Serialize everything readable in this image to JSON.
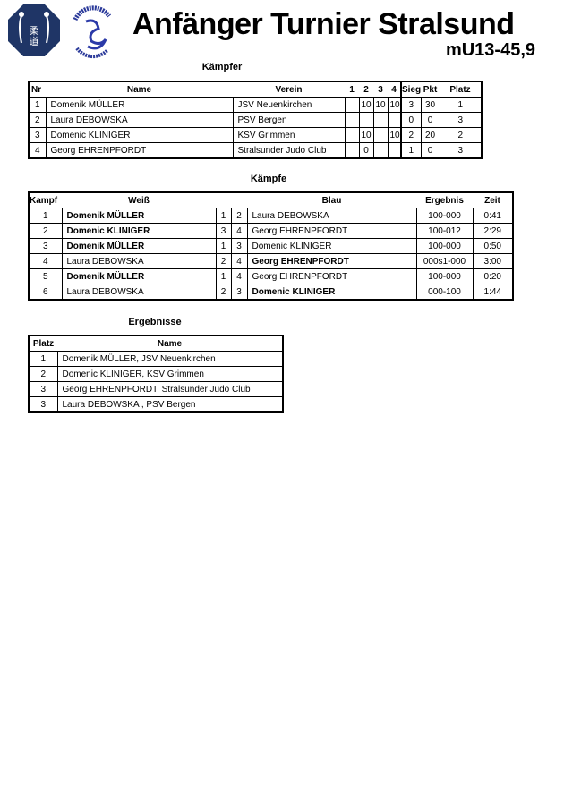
{
  "header": {
    "title": "Anfänger Turnier Stralsund",
    "category": "mU13-45,9",
    "logo_right_text": "STRALSUNDER JUDO CLUB e.V."
  },
  "kaempfer": {
    "title": "Kämpfer",
    "columns": [
      "Nr",
      "Name",
      "Verein",
      "1",
      "2",
      "3",
      "4",
      "Siege",
      "Pkt",
      "Platz"
    ],
    "rows": [
      {
        "nr": "1",
        "name": "Domenik MÜLLER",
        "verein": "JSV Neuenkirchen",
        "s1": "",
        "s2": "10",
        "s3": "10",
        "s4": "10",
        "siege": "3",
        "pkt": "30",
        "platz": "1"
      },
      {
        "nr": "2",
        "name": "Laura DEBOWSKA",
        "verein": "PSV Bergen",
        "s1": "",
        "s2": "",
        "s3": "",
        "s4": "",
        "siege": "0",
        "pkt": "0",
        "platz": "3"
      },
      {
        "nr": "3",
        "name": "Domenic KLINIGER",
        "verein": "KSV Grimmen",
        "s1": "",
        "s2": "10",
        "s3": "",
        "s4": "10",
        "siege": "2",
        "pkt": "20",
        "platz": "2"
      },
      {
        "nr": "4",
        "name": "Georg EHRENPFORDT",
        "verein": "Stralsunder Judo Club",
        "s1": "",
        "s2": "0",
        "s3": "",
        "s4": "",
        "siege": "1",
        "pkt": "0",
        "platz": "3"
      }
    ]
  },
  "kaempfe": {
    "title": "Kämpfe",
    "columns": [
      "Kampf",
      "Weiß",
      "Blau",
      "Ergebnis",
      "Zeit"
    ],
    "rows": [
      {
        "kampf": "1",
        "weiss": "Domenik MÜLLER",
        "wnr": "1",
        "bnr": "2",
        "blau": "Laura DEBOWSKA",
        "ergebnis": "100-000",
        "zeit": "0:41",
        "winner": "weiss"
      },
      {
        "kampf": "2",
        "weiss": "Domenic KLINIGER",
        "wnr": "3",
        "bnr": "4",
        "blau": "Georg EHRENPFORDT",
        "ergebnis": "100-012",
        "zeit": "2:29",
        "winner": "weiss"
      },
      {
        "kampf": "3",
        "weiss": "Domenik MÜLLER",
        "wnr": "1",
        "bnr": "3",
        "blau": "Domenic KLINIGER",
        "ergebnis": "100-000",
        "zeit": "0:50",
        "winner": "weiss"
      },
      {
        "kampf": "4",
        "weiss": "Laura DEBOWSKA",
        "wnr": "2",
        "bnr": "4",
        "blau": "Georg EHRENPFORDT",
        "ergebnis": "000s1-000",
        "zeit": "3:00",
        "winner": "blau"
      },
      {
        "kampf": "5",
        "weiss": "Domenik MÜLLER",
        "wnr": "1",
        "bnr": "4",
        "blau": "Georg EHRENPFORDT",
        "ergebnis": "100-000",
        "zeit": "0:20",
        "winner": "weiss"
      },
      {
        "kampf": "6",
        "weiss": "Laura DEBOWSKA",
        "wnr": "2",
        "bnr": "3",
        "blau": "Domenic KLINIGER",
        "ergebnis": "000-100",
        "zeit": "1:44",
        "winner": "blau"
      }
    ]
  },
  "ergebnisse": {
    "title": "Ergebnisse",
    "columns": [
      "Platz",
      "Name"
    ],
    "rows": [
      {
        "platz": "1",
        "name": "Domenik MÜLLER, JSV Neuenkirchen"
      },
      {
        "platz": "2",
        "name": "Domenic KLINIGER, KSV Grimmen"
      },
      {
        "platz": "3",
        "name": "Georg EHRENPFORDT, Stralsunder Judo Club"
      },
      {
        "platz": "3",
        "name": "Laura DEBOWSKA , PSV Bergen"
      }
    ]
  }
}
